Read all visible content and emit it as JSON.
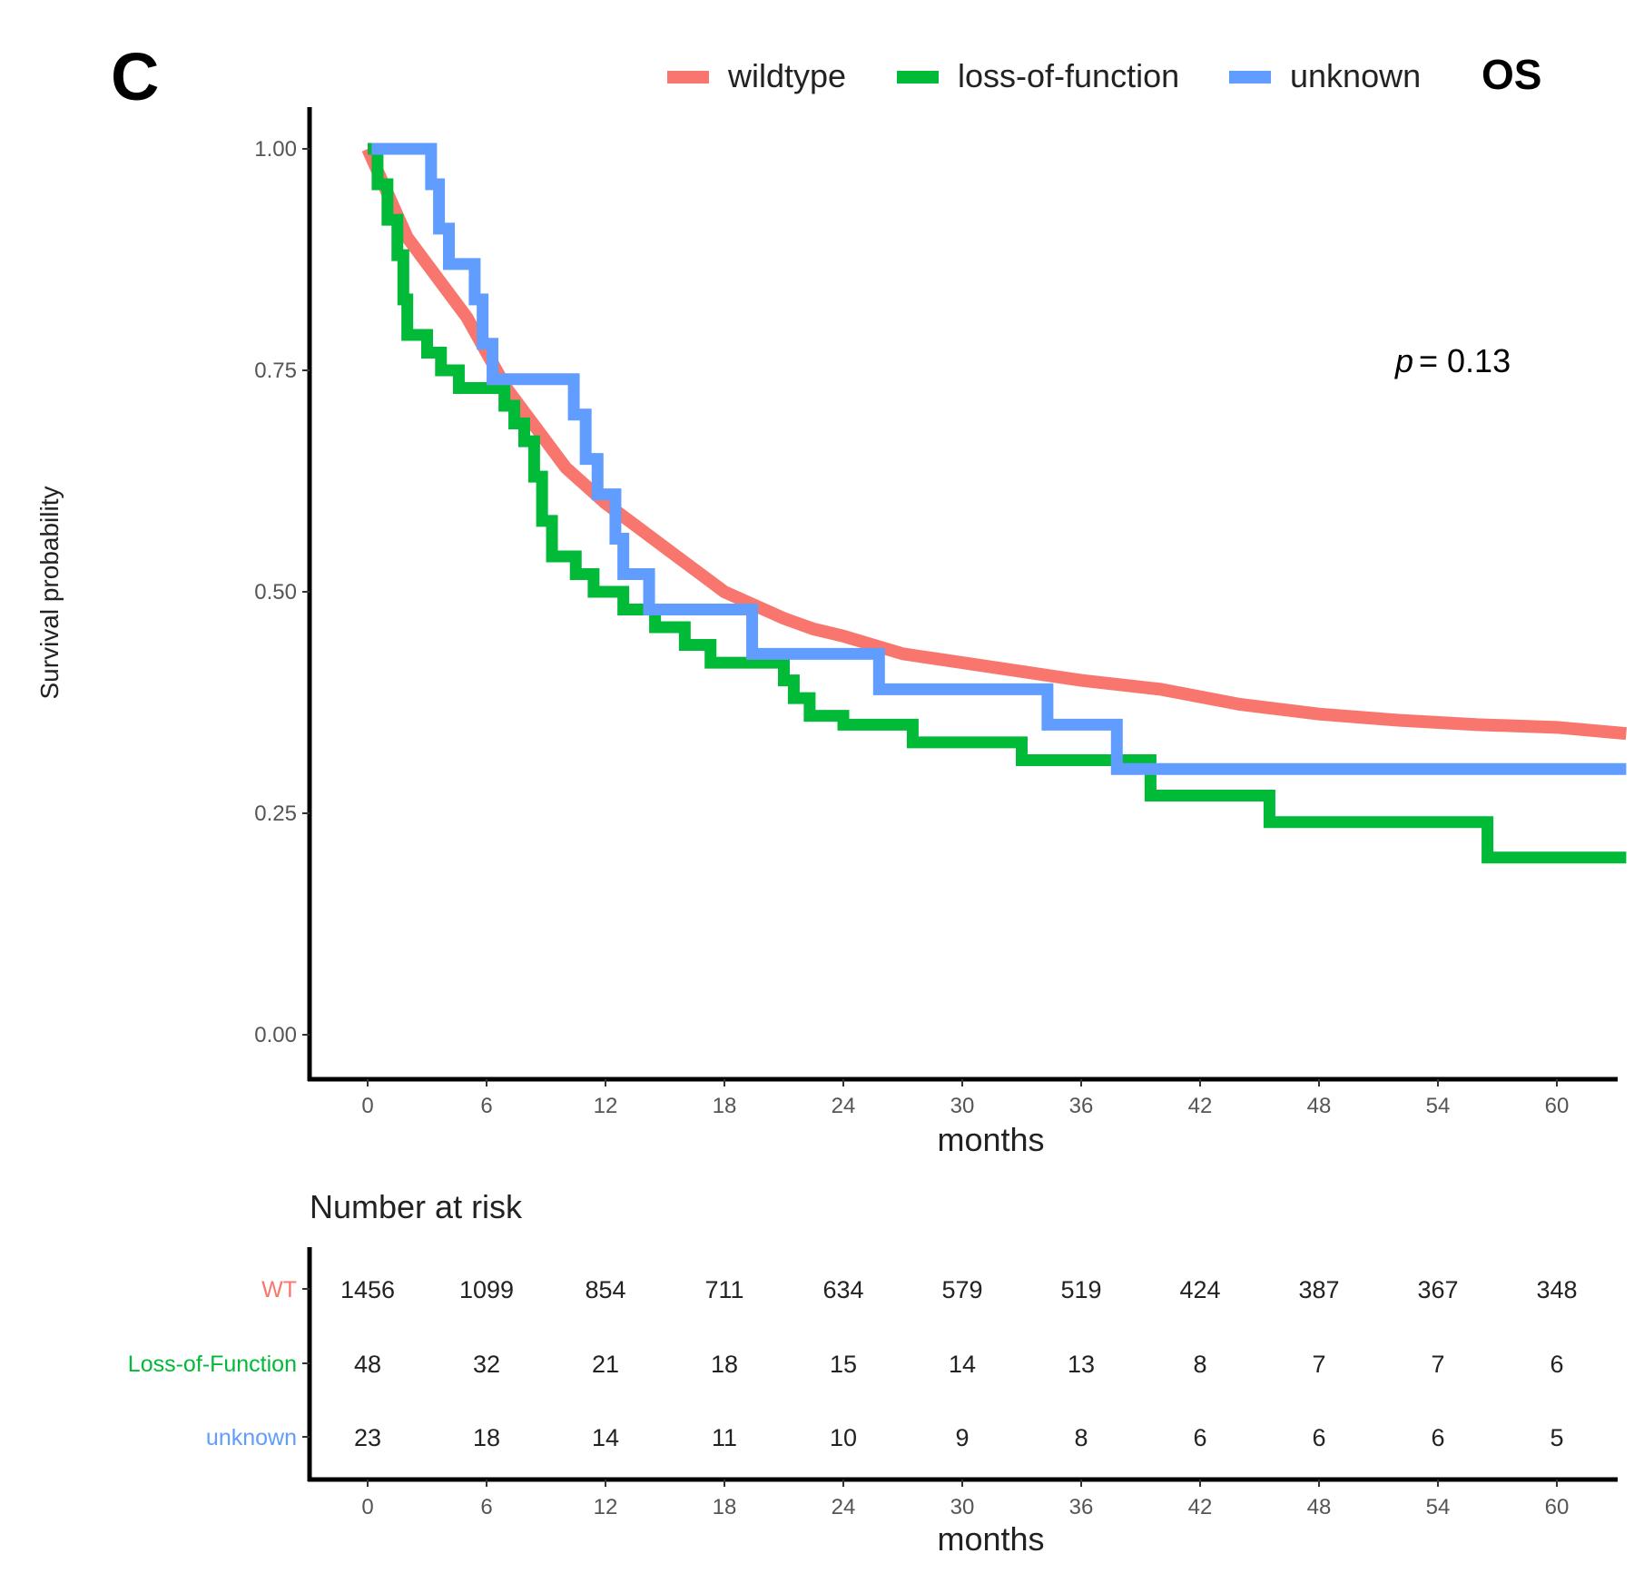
{
  "chart_data": {
    "type": "line",
    "panel_label": "C",
    "title": "OS",
    "xlabel": "months",
    "ylabel": "Survival probability",
    "xlim": [
      -2.9,
      63.5
    ],
    "ylim": [
      -0.05,
      1.05
    ],
    "xticks": [
      0,
      6,
      12,
      18,
      24,
      30,
      36,
      42,
      48,
      54,
      60
    ],
    "yticks": [
      0,
      0.25,
      0.5,
      0.75,
      1.0
    ],
    "ytick_labels": [
      "0.00",
      "0.25",
      "0.50",
      "0.75",
      "1.00"
    ],
    "annotation": {
      "p_label": "p",
      "p_value": "= 0.13"
    },
    "legend_position": "top",
    "series": [
      {
        "name": "wildtype",
        "color": "#F8766D",
        "step": false,
        "x": [
          0,
          1,
          2,
          3,
          4,
          5,
          6,
          7,
          8,
          9,
          10,
          11,
          12,
          13.5,
          15,
          16.5,
          18,
          19.5,
          21,
          22.5,
          24,
          25.5,
          27,
          28.5,
          30,
          33,
          36,
          40,
          44,
          48,
          52,
          56,
          60,
          63.5
        ],
        "y": [
          1,
          0.95,
          0.9,
          0.87,
          0.84,
          0.81,
          0.77,
          0.73,
          0.7,
          0.67,
          0.64,
          0.62,
          0.6,
          0.575,
          0.55,
          0.525,
          0.5,
          0.485,
          0.47,
          0.458,
          0.45,
          0.44,
          0.43,
          0.425,
          0.42,
          0.41,
          0.4,
          0.39,
          0.373,
          0.362,
          0.355,
          0.35,
          0.347,
          0.34
        ]
      },
      {
        "name": "loss-of-function",
        "color": "#00BA38",
        "step": true,
        "x": [
          0,
          0.5,
          1,
          1.5,
          1.8,
          2,
          3,
          3.7,
          4.6,
          6.9,
          7.4,
          7.9,
          8.4,
          8.8,
          9.3,
          10.5,
          11.4,
          12.9,
          14.5,
          16,
          17.3,
          21,
          21.5,
          22.3,
          24,
          27.5,
          33,
          39.5,
          45.5,
          56.5,
          63.5
        ],
        "y": [
          1,
          0.96,
          0.92,
          0.88,
          0.83,
          0.79,
          0.77,
          0.75,
          0.73,
          0.71,
          0.69,
          0.67,
          0.63,
          0.58,
          0.54,
          0.52,
          0.5,
          0.48,
          0.46,
          0.44,
          0.42,
          0.4,
          0.38,
          0.36,
          0.35,
          0.33,
          0.31,
          0.27,
          0.24,
          0.2,
          0.2
        ]
      },
      {
        "name": "unknown",
        "color": "#619CFF",
        "step": true,
        "x": [
          0.2,
          3.2,
          3.6,
          4.1,
          5.4,
          5.8,
          6.3,
          10.4,
          11,
          11.6,
          12.5,
          12.9,
          14.2,
          19.4,
          25.8,
          34.3,
          37.8,
          63.5
        ],
        "y": [
          1,
          0.96,
          0.91,
          0.87,
          0.83,
          0.78,
          0.74,
          0.7,
          0.65,
          0.61,
          0.56,
          0.52,
          0.48,
          0.43,
          0.39,
          0.35,
          0.3,
          0.3
        ]
      }
    ],
    "risk_table": {
      "title": "Number at risk",
      "xlabel": "months",
      "rows": [
        {
          "label": "WT",
          "color": "#F8766D",
          "values": [
            "1456",
            "1099",
            "854",
            "711",
            "634",
            "579",
            "519",
            "424",
            "387",
            "367",
            "348"
          ]
        },
        {
          "label": "Loss-of-Function",
          "color": "#00BA38",
          "values": [
            "48",
            "32",
            "21",
            "18",
            "15",
            "14",
            "13",
            "8",
            "7",
            "7",
            "6"
          ]
        },
        {
          "label": "unknown",
          "color": "#619CFF",
          "values": [
            "23",
            "18",
            "14",
            "11",
            "10",
            "9",
            "8",
            "6",
            "6",
            "6",
            "5"
          ]
        }
      ]
    }
  }
}
